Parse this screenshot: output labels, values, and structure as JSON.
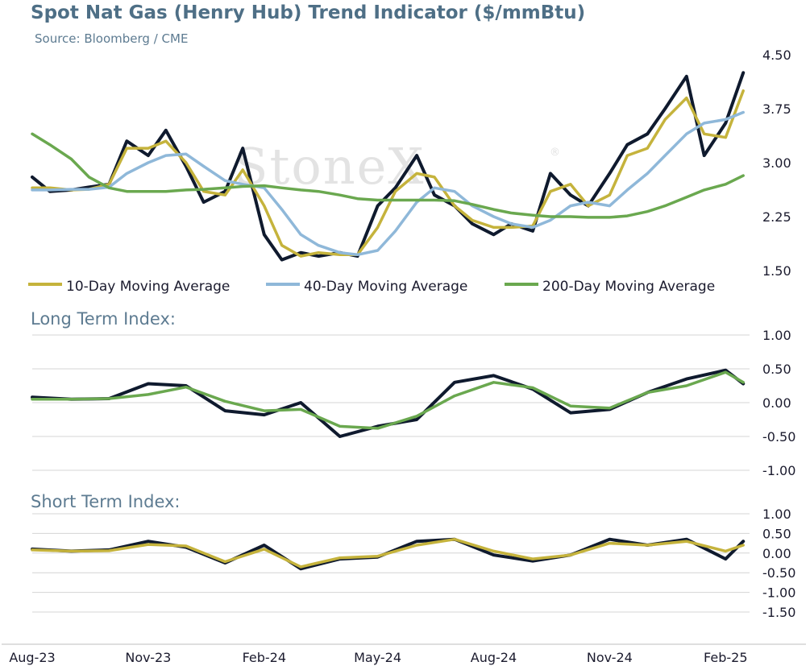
{
  "title": "Spot Nat Gas (Henry Hub) Trend Indicator ($/mmBtu)",
  "source": "Source: Bloomberg / CME",
  "watermark": "StoneX",
  "watermark_mark": "®",
  "colors": {
    "price": "#0f1a2e",
    "ma10": "#c5b33c",
    "ma40": "#8fb8d9",
    "ma200": "#6aa84f",
    "title": "#4e6f86"
  },
  "x_axis": {
    "labels": [
      "Aug-23",
      "Nov-23",
      "Feb-24",
      "May-24",
      "Aug-24",
      "Nov-24",
      "Feb-25"
    ]
  },
  "legend": {
    "ma10": "10-Day Moving Average",
    "ma40": "40-Day Moving Average",
    "ma200": "200-Day Moving Average"
  },
  "chart_data": [
    {
      "type": "line",
      "title": "Spot Nat Gas (Henry Hub) Trend Indicator ($/mmBtu)",
      "ylim": [
        1.5,
        4.5
      ],
      "yticks": [
        "4.50",
        "3.75",
        "3.00",
        "2.25",
        "1.50"
      ],
      "grid": false,
      "legend": "bottom",
      "x": [
        "2023-08-01",
        "2023-08-15",
        "2023-09-01",
        "2023-09-15",
        "2023-10-01",
        "2023-10-15",
        "2023-11-01",
        "2023-11-15",
        "2023-12-01",
        "2023-12-15",
        "2024-01-01",
        "2024-01-15",
        "2024-02-01",
        "2024-02-15",
        "2024-03-01",
        "2024-03-15",
        "2024-04-01",
        "2024-04-15",
        "2024-05-01",
        "2024-05-15",
        "2024-06-01",
        "2024-06-15",
        "2024-07-01",
        "2024-07-15",
        "2024-08-01",
        "2024-08-15",
        "2024-09-01",
        "2024-09-15",
        "2024-10-01",
        "2024-10-15",
        "2024-11-01",
        "2024-11-15",
        "2024-12-01",
        "2024-12-15",
        "2025-01-01",
        "2025-01-15",
        "2025-02-01",
        "2025-02-15"
      ],
      "series": [
        {
          "key": "price",
          "values": [
            2.8,
            2.6,
            2.62,
            2.66,
            2.7,
            3.3,
            3.1,
            3.45,
            2.95,
            2.45,
            2.6,
            3.2,
            2.0,
            1.65,
            1.75,
            1.7,
            1.75,
            1.7,
            2.4,
            2.65,
            3.1,
            2.55,
            2.4,
            2.15,
            2.0,
            2.15,
            2.05,
            2.85,
            2.55,
            2.4,
            2.85,
            3.25,
            3.4,
            3.75,
            4.2,
            3.1,
            3.55,
            4.25
          ]
        },
        {
          "name": "10-Day Moving Average",
          "key": "ma10",
          "values": [
            2.65,
            2.65,
            2.62,
            2.63,
            2.7,
            3.2,
            3.2,
            3.3,
            3.0,
            2.6,
            2.55,
            2.9,
            2.4,
            1.85,
            1.7,
            1.75,
            1.72,
            1.72,
            2.1,
            2.6,
            2.85,
            2.8,
            2.4,
            2.2,
            2.1,
            2.1,
            2.12,
            2.6,
            2.7,
            2.4,
            2.55,
            3.1,
            3.2,
            3.6,
            3.9,
            3.4,
            3.35,
            4.0
          ]
        },
        {
          "name": "40-Day Moving Average",
          "key": "ma40",
          "values": [
            2.62,
            2.62,
            2.63,
            2.63,
            2.66,
            2.85,
            3.0,
            3.1,
            3.12,
            2.95,
            2.75,
            2.7,
            2.65,
            2.35,
            2.0,
            1.85,
            1.75,
            1.72,
            1.78,
            2.05,
            2.45,
            2.65,
            2.6,
            2.4,
            2.25,
            2.15,
            2.1,
            2.2,
            2.4,
            2.45,
            2.4,
            2.62,
            2.85,
            3.1,
            3.4,
            3.55,
            3.6,
            3.7
          ]
        },
        {
          "name": "200-Day Moving Average",
          "key": "ma200",
          "values": [
            3.4,
            3.25,
            3.05,
            2.8,
            2.65,
            2.6,
            2.6,
            2.6,
            2.62,
            2.63,
            2.65,
            2.67,
            2.68,
            2.65,
            2.62,
            2.6,
            2.55,
            2.5,
            2.48,
            2.48,
            2.48,
            2.48,
            2.47,
            2.42,
            2.35,
            2.3,
            2.27,
            2.25,
            2.25,
            2.24,
            2.24,
            2.26,
            2.32,
            2.4,
            2.52,
            2.62,
            2.7,
            2.82
          ]
        }
      ]
    },
    {
      "type": "line",
      "title": "Long Term Index:",
      "ylim": [
        -1.0,
        1.0
      ],
      "yticks": [
        "1.00",
        "0.50",
        "0.00",
        "-0.50",
        "-1.00"
      ],
      "grid": true,
      "x": [
        "2023-08-01",
        "2023-09-01",
        "2023-10-01",
        "2023-11-01",
        "2023-12-01",
        "2024-01-01",
        "2024-02-01",
        "2024-03-01",
        "2024-04-01",
        "2024-05-01",
        "2024-06-01",
        "2024-07-01",
        "2024-08-01",
        "2024-09-01",
        "2024-10-01",
        "2024-11-01",
        "2024-12-01",
        "2025-01-01",
        "2025-02-01",
        "2025-02-15"
      ],
      "series": [
        {
          "key": "price",
          "values": [
            0.08,
            0.05,
            0.06,
            0.28,
            0.25,
            -0.12,
            -0.18,
            0.0,
            -0.5,
            -0.35,
            -0.25,
            0.3,
            0.4,
            0.2,
            -0.15,
            -0.1,
            0.15,
            0.35,
            0.48,
            0.28
          ]
        },
        {
          "key": "ma200",
          "values": [
            0.05,
            0.05,
            0.06,
            0.12,
            0.23,
            0.02,
            -0.12,
            -0.1,
            -0.35,
            -0.38,
            -0.2,
            0.1,
            0.3,
            0.22,
            -0.05,
            -0.08,
            0.15,
            0.25,
            0.45,
            0.3
          ]
        }
      ]
    },
    {
      "type": "line",
      "title": "Short Term Index:",
      "ylim": [
        -1.5,
        1.0
      ],
      "yticks": [
        "1.00",
        "0.50",
        "0.00",
        "-0.50",
        "-1.00",
        "-1.50"
      ],
      "grid": true,
      "x": [
        "2023-08-01",
        "2023-09-01",
        "2023-10-01",
        "2023-11-01",
        "2023-12-01",
        "2024-01-01",
        "2024-02-01",
        "2024-03-01",
        "2024-04-01",
        "2024-05-01",
        "2024-06-01",
        "2024-07-01",
        "2024-08-01",
        "2024-09-01",
        "2024-10-01",
        "2024-11-01",
        "2024-12-01",
        "2025-01-01",
        "2025-02-01",
        "2025-02-15"
      ],
      "series": [
        {
          "key": "price",
          "values": [
            0.1,
            0.05,
            0.08,
            0.3,
            0.15,
            -0.25,
            0.2,
            -0.4,
            -0.15,
            -0.1,
            0.3,
            0.35,
            -0.05,
            -0.2,
            -0.05,
            0.35,
            0.2,
            0.35,
            -0.15,
            0.3
          ]
        },
        {
          "key": "ma10",
          "values": [
            0.08,
            0.05,
            0.06,
            0.22,
            0.18,
            -0.22,
            0.1,
            -0.35,
            -0.12,
            -0.08,
            0.2,
            0.35,
            0.05,
            -0.15,
            -0.05,
            0.25,
            0.2,
            0.3,
            0.05,
            0.2
          ]
        }
      ]
    }
  ]
}
